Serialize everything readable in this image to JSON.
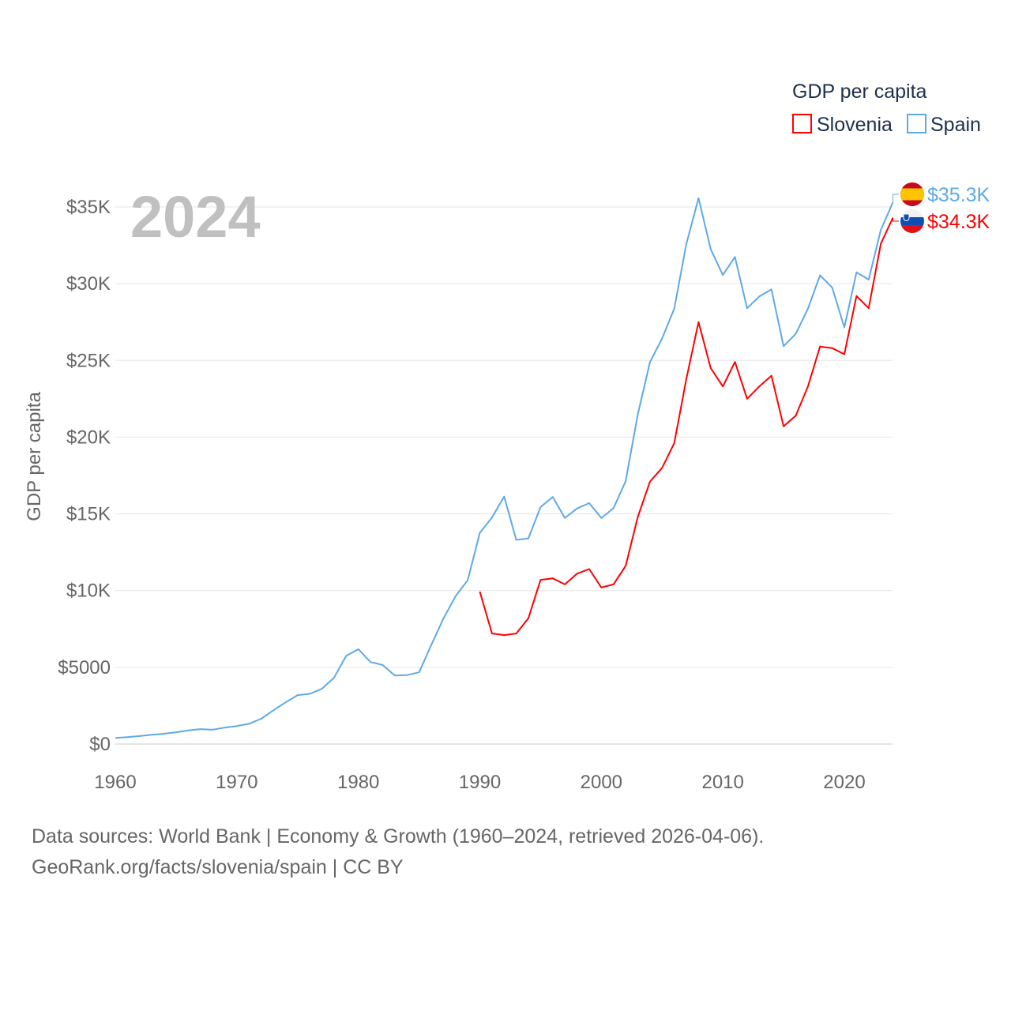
{
  "chart_data": {
    "type": "line",
    "title": "GDP per capita",
    "ylabel": "GDP per capita",
    "xlabel": "",
    "year_label": "2024",
    "xlim": [
      1960,
      2024
    ],
    "ylim": [
      0,
      35000
    ],
    "x_ticks": [
      1960,
      1970,
      1980,
      1990,
      2000,
      2010,
      2020
    ],
    "x_tick_labels": [
      "1960",
      "1970",
      "1980",
      "1990",
      "2000",
      "2010",
      "2020"
    ],
    "y_ticks": [
      0,
      5000,
      10000,
      15000,
      20000,
      25000,
      30000,
      35000
    ],
    "y_tick_labels": [
      "$0",
      "$5000",
      "$10K",
      "$15K",
      "$20K",
      "$25K",
      "$30K",
      "$35K"
    ],
    "grid": true,
    "legend_position": "top-right",
    "series": [
      {
        "name": "Slovenia",
        "color": "#ff0000",
        "end_label": "$34.3K",
        "flag": "slovenia-flag",
        "start_year": 1990,
        "values": [
          9930,
          7200,
          7100,
          7200,
          8200,
          10700,
          10800,
          10400,
          11100,
          11400,
          10200,
          10400,
          11600,
          14800,
          17100,
          18000,
          19600,
          23800,
          27500,
          24500,
          23300,
          24900,
          22500,
          23300,
          24000,
          20700,
          21400,
          23300,
          25900,
          25800,
          25400,
          29200,
          28400,
          32600,
          34300
        ]
      },
      {
        "name": "Spain",
        "color": "#5ea9e8",
        "end_label": "$35.3K",
        "flag": "spain-flag",
        "start_year": 1960,
        "values": [
          396,
          451,
          520,
          609,
          669,
          769,
          887,
          971,
          934,
          1071,
          1176,
          1320,
          1645,
          2194,
          2714,
          3188,
          3268,
          3599,
          4324,
          5742,
          6180,
          5344,
          5150,
          4462,
          4491,
          4674,
          6452,
          8172,
          9624,
          10670,
          13762,
          14767,
          16125,
          13307,
          13404,
          15448,
          16098,
          14726,
          15352,
          15697,
          14731,
          15365,
          17126,
          21482,
          24893,
          26431,
          28365,
          32591,
          35578,
          32249,
          30565,
          31744,
          28400,
          29161,
          29624,
          25928,
          26727,
          28371,
          30545,
          29746,
          27153,
          30743,
          30265,
          33509,
          35300
        ]
      }
    ]
  },
  "footer": {
    "line1": "Data sources: World Bank | Economy & Growth (1960–2024, retrieved 2026-04-06).",
    "line2": "GeoRank.org/facts/slovenia/spain | CC BY"
  }
}
